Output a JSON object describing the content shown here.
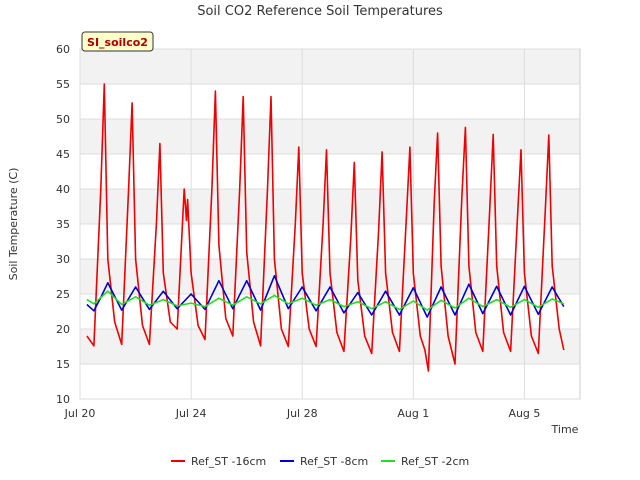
{
  "chart_data": {
    "type": "line",
    "title": "Soil CO2 Reference Soil Temperatures",
    "badge": "SI_soilco2",
    "xlabel": "Time",
    "ylabel": "Soil Temperature (C)",
    "ylim": [
      10,
      60
    ],
    "yticks": [
      10,
      15,
      20,
      25,
      30,
      35,
      40,
      45,
      50,
      55,
      60
    ],
    "xlim": [
      "2023-07-20",
      "2023-08-07"
    ],
    "xticks": [
      {
        "date": "2023-07-20",
        "label": "Jul 20"
      },
      {
        "date": "2023-07-24",
        "label": "Jul 24"
      },
      {
        "date": "2023-07-28",
        "label": "Jul 28"
      },
      {
        "date": "2023-08-01",
        "label": "Aug 1"
      },
      {
        "date": "2023-08-05",
        "label": "Aug 5"
      }
    ],
    "grid": true,
    "legend_position": "bottom",
    "series": [
      {
        "name": "Ref_ST -16cm",
        "color": "#ee0000",
        "points": [
          [
            "2023-07-20 06:00",
            19.0
          ],
          [
            "2023-07-20 12:00",
            17.6
          ],
          [
            "2023-07-20 18:00",
            40.0
          ],
          [
            "2023-07-20 21:00",
            55.0
          ],
          [
            "2023-07-21 00:00",
            30.0
          ],
          [
            "2023-07-21 06:00",
            21.0
          ],
          [
            "2023-07-21 12:00",
            17.8
          ],
          [
            "2023-07-21 18:00",
            40.0
          ],
          [
            "2023-07-21 21:00",
            52.3
          ],
          [
            "2023-07-22 00:00",
            30.0
          ],
          [
            "2023-07-22 06:00",
            20.5
          ],
          [
            "2023-07-22 12:00",
            17.8
          ],
          [
            "2023-07-22 18:00",
            35.0
          ],
          [
            "2023-07-22 21:00",
            46.5
          ],
          [
            "2023-07-23 00:00",
            28.0
          ],
          [
            "2023-07-23 06:00",
            21.0
          ],
          [
            "2023-07-23 12:00",
            20.0
          ],
          [
            "2023-07-23 18:00",
            40.0
          ],
          [
            "2023-07-23 20:00",
            35.5
          ],
          [
            "2023-07-23 21:00",
            38.5
          ],
          [
            "2023-07-24 00:00",
            28.0
          ],
          [
            "2023-07-24 06:00",
            20.5
          ],
          [
            "2023-07-24 12:00",
            18.5
          ],
          [
            "2023-07-24 18:00",
            40.0
          ],
          [
            "2023-07-24 21:00",
            54.0
          ],
          [
            "2023-07-25 00:00",
            32.0
          ],
          [
            "2023-07-25 06:00",
            21.5
          ],
          [
            "2023-07-25 12:00",
            19.0
          ],
          [
            "2023-07-25 18:00",
            40.0
          ],
          [
            "2023-07-25 21:00",
            53.2
          ],
          [
            "2023-07-26 00:00",
            31.0
          ],
          [
            "2023-07-26 06:00",
            21.0
          ],
          [
            "2023-07-26 12:00",
            17.6
          ],
          [
            "2023-07-26 18:00",
            40.0
          ],
          [
            "2023-07-26 21:00",
            53.2
          ],
          [
            "2023-07-27 00:00",
            30.0
          ],
          [
            "2023-07-27 06:00",
            20.0
          ],
          [
            "2023-07-27 12:00",
            17.5
          ],
          [
            "2023-07-27 18:00",
            35.0
          ],
          [
            "2023-07-27 21:00",
            46.0
          ],
          [
            "2023-07-28 00:00",
            28.0
          ],
          [
            "2023-07-28 06:00",
            20.0
          ],
          [
            "2023-07-28 12:00",
            17.5
          ],
          [
            "2023-07-28 18:00",
            35.0
          ],
          [
            "2023-07-28 21:00",
            45.6
          ],
          [
            "2023-07-29 00:00",
            28.0
          ],
          [
            "2023-07-29 06:00",
            19.5
          ],
          [
            "2023-07-29 12:00",
            16.8
          ],
          [
            "2023-07-29 18:00",
            33.0
          ],
          [
            "2023-07-29 21:00",
            43.8
          ],
          [
            "2023-07-30 00:00",
            27.0
          ],
          [
            "2023-07-30 06:00",
            19.0
          ],
          [
            "2023-07-30 12:00",
            16.5
          ],
          [
            "2023-07-30 18:00",
            34.0
          ],
          [
            "2023-07-30 21:00",
            45.3
          ],
          [
            "2023-07-31 00:00",
            28.0
          ],
          [
            "2023-07-31 06:00",
            19.5
          ],
          [
            "2023-07-31 12:00",
            16.8
          ],
          [
            "2023-07-31 18:00",
            36.0
          ],
          [
            "2023-07-31 21:00",
            46.0
          ],
          [
            "2023-08-01 00:00",
            28.0
          ],
          [
            "2023-08-01 06:00",
            19.0
          ],
          [
            "2023-08-01 10:00",
            17.0
          ],
          [
            "2023-08-01 13:00",
            14.0
          ],
          [
            "2023-08-01 18:00",
            38.0
          ],
          [
            "2023-08-01 21:00",
            48.0
          ],
          [
            "2023-08-02 00:00",
            29.0
          ],
          [
            "2023-08-02 06:00",
            19.0
          ],
          [
            "2023-08-02 12:00",
            15.0
          ],
          [
            "2023-08-02 18:00",
            39.0
          ],
          [
            "2023-08-02 21:00",
            48.8
          ],
          [
            "2023-08-03 00:00",
            29.0
          ],
          [
            "2023-08-03 06:00",
            19.5
          ],
          [
            "2023-08-03 12:00",
            16.8
          ],
          [
            "2023-08-03 18:00",
            37.0
          ],
          [
            "2023-08-03 21:00",
            47.8
          ],
          [
            "2023-08-04 00:00",
            29.0
          ],
          [
            "2023-08-04 06:00",
            19.5
          ],
          [
            "2023-08-04 12:00",
            16.8
          ],
          [
            "2023-08-04 18:00",
            36.0
          ],
          [
            "2023-08-04 21:00",
            45.6
          ],
          [
            "2023-08-05 00:00",
            28.0
          ],
          [
            "2023-08-05 06:00",
            19.0
          ],
          [
            "2023-08-05 12:00",
            16.5
          ],
          [
            "2023-08-05 18:00",
            37.0
          ],
          [
            "2023-08-05 21:00",
            47.7
          ],
          [
            "2023-08-06 00:00",
            29.0
          ],
          [
            "2023-08-06 06:00",
            20.0
          ],
          [
            "2023-08-06 10:00",
            17.0
          ]
        ]
      },
      {
        "name": "Ref_ST -8cm",
        "color": "#0000cc",
        "points": [
          [
            "2023-07-20 06:00",
            23.5
          ],
          [
            "2023-07-20 12:00",
            22.6
          ],
          [
            "2023-07-20 18:00",
            24.5
          ],
          [
            "2023-07-21 00:00",
            26.6
          ],
          [
            "2023-07-21 12:00",
            22.7
          ],
          [
            "2023-07-22 00:00",
            26.0
          ],
          [
            "2023-07-22 12:00",
            22.8
          ],
          [
            "2023-07-23 00:00",
            25.4
          ],
          [
            "2023-07-23 12:00",
            22.9
          ],
          [
            "2023-07-24 00:00",
            25.0
          ],
          [
            "2023-07-24 12:00",
            22.8
          ],
          [
            "2023-07-25 00:00",
            26.9
          ],
          [
            "2023-07-25 12:00",
            22.9
          ],
          [
            "2023-07-26 00:00",
            26.9
          ],
          [
            "2023-07-26 12:00",
            22.7
          ],
          [
            "2023-07-27 00:00",
            27.6
          ],
          [
            "2023-07-27 12:00",
            22.9
          ],
          [
            "2023-07-28 00:00",
            26.0
          ],
          [
            "2023-07-28 12:00",
            22.6
          ],
          [
            "2023-07-29 00:00",
            26.0
          ],
          [
            "2023-07-29 12:00",
            22.3
          ],
          [
            "2023-07-30 00:00",
            25.2
          ],
          [
            "2023-07-30 12:00",
            22.0
          ],
          [
            "2023-07-31 00:00",
            25.4
          ],
          [
            "2023-07-31 12:00",
            22.0
          ],
          [
            "2023-08-01 00:00",
            25.9
          ],
          [
            "2023-08-01 12:00",
            21.7
          ],
          [
            "2023-08-02 00:00",
            26.0
          ],
          [
            "2023-08-02 12:00",
            22.0
          ],
          [
            "2023-08-03 00:00",
            26.4
          ],
          [
            "2023-08-03 12:00",
            22.2
          ],
          [
            "2023-08-04 00:00",
            26.1
          ],
          [
            "2023-08-04 12:00",
            22.0
          ],
          [
            "2023-08-05 00:00",
            26.1
          ],
          [
            "2023-08-05 12:00",
            22.1
          ],
          [
            "2023-08-06 00:00",
            26.0
          ],
          [
            "2023-08-06 10:00",
            23.2
          ]
        ]
      },
      {
        "name": "Ref_ST -2cm",
        "color": "#22dd22",
        "points": [
          [
            "2023-07-20 06:00",
            24.2
          ],
          [
            "2023-07-20 12:00",
            23.6
          ],
          [
            "2023-07-21 00:00",
            25.4
          ],
          [
            "2023-07-21 12:00",
            23.5
          ],
          [
            "2023-07-22 00:00",
            24.6
          ],
          [
            "2023-07-22 12:00",
            23.4
          ],
          [
            "2023-07-23 00:00",
            24.2
          ],
          [
            "2023-07-23 12:00",
            23.3
          ],
          [
            "2023-07-24 00:00",
            23.7
          ],
          [
            "2023-07-24 12:00",
            23.2
          ],
          [
            "2023-07-25 00:00",
            24.4
          ],
          [
            "2023-07-25 12:00",
            23.4
          ],
          [
            "2023-07-26 00:00",
            24.6
          ],
          [
            "2023-07-26 12:00",
            23.6
          ],
          [
            "2023-07-27 00:00",
            24.8
          ],
          [
            "2023-07-27 12:00",
            23.6
          ],
          [
            "2023-07-28 00:00",
            24.4
          ],
          [
            "2023-07-28 12:00",
            23.4
          ],
          [
            "2023-07-29 00:00",
            24.2
          ],
          [
            "2023-07-29 12:00",
            23.2
          ],
          [
            "2023-07-30 00:00",
            23.9
          ],
          [
            "2023-07-30 12:00",
            22.9
          ],
          [
            "2023-07-31 00:00",
            23.9
          ],
          [
            "2023-07-31 12:00",
            22.8
          ],
          [
            "2023-08-01 00:00",
            24.0
          ],
          [
            "2023-08-01 12:00",
            22.7
          ],
          [
            "2023-08-02 00:00",
            24.1
          ],
          [
            "2023-08-02 12:00",
            23.0
          ],
          [
            "2023-08-03 00:00",
            24.4
          ],
          [
            "2023-08-03 12:00",
            23.2
          ],
          [
            "2023-08-04 00:00",
            24.2
          ],
          [
            "2023-08-04 12:00",
            23.1
          ],
          [
            "2023-08-05 00:00",
            24.2
          ],
          [
            "2023-08-05 12:00",
            23.1
          ],
          [
            "2023-08-06 00:00",
            24.3
          ],
          [
            "2023-08-06 10:00",
            23.6
          ]
        ]
      }
    ]
  }
}
